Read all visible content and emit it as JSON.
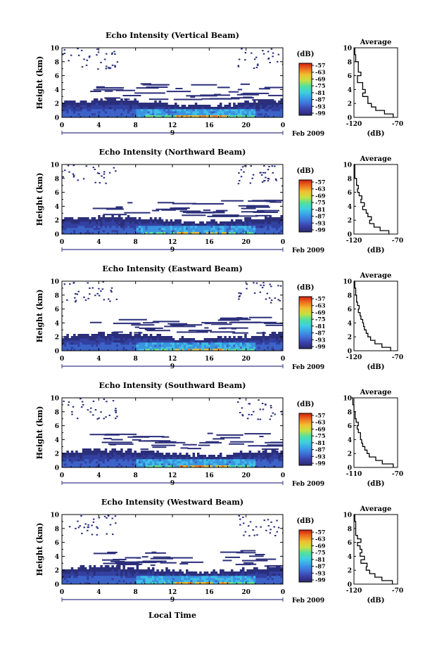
{
  "colors": {
    "scale": [
      "#2a2a6e",
      "#3b3fa8",
      "#3f6fd8",
      "#3aa0e8",
      "#3fd0e0",
      "#50e0a0",
      "#c8e040",
      "#f0c030",
      "#f07020",
      "#d02010"
    ],
    "beam_layer": [
      "#2b2f7a",
      "#3340a0",
      "#3c63c8",
      "#3a94e0",
      "#40c0e8"
    ],
    "core": [
      "#3fd0c0",
      "#6ee08a",
      "#e0c040",
      "#f08020"
    ]
  },
  "axis_labels": {
    "height": "Height (km)",
    "db": "(dB)",
    "average": "Average",
    "date": "Feb 2009",
    "day": "9",
    "local_time": "Local Time"
  },
  "panels": [
    {
      "title": "Echo Intensity (Vertical Beam)",
      "intensity": 1.0
    },
    {
      "title": "Echo Intensity (Northward Beam)",
      "intensity": 0.55
    },
    {
      "title": "Echo Intensity (Eastward Beam)",
      "intensity": 0.75
    },
    {
      "title": "Echo Intensity (Southward Beam)",
      "intensity": 0.9
    },
    {
      "title": "Echo Intensity (Westward Beam)",
      "intensity": 0.8
    }
  ],
  "chart_data": [
    {
      "type": "heatmap",
      "title": "Echo Intensity (Vertical Beam)",
      "ylabel": "Height (km)",
      "xticks": [
        "0",
        "4",
        "8",
        "12",
        "16",
        "20",
        "0"
      ],
      "yticks": [
        "0",
        "2",
        "4",
        "6",
        "8",
        "10"
      ],
      "colorbar_label": "(dB)",
      "colorbar_ticks": [
        "-57",
        "-63",
        "-69",
        "-75",
        "-81",
        "-87",
        "-93",
        "-99"
      ],
      "average_profile": {
        "title": "Average",
        "xlabel": "(dB)",
        "xticks": [
          "-120",
          "-70"
        ],
        "yticks": [
          "0",
          "2",
          "4",
          "6",
          "8",
          "10"
        ],
        "height_km": [
          0,
          0.5,
          1.0,
          1.5,
          2.0,
          2.5,
          3.0,
          3.5,
          4.0,
          4.5,
          5.0,
          5.5,
          6.0,
          6.5,
          7.0,
          8.0,
          9.0,
          10.0
        ],
        "db": [
          -75,
          -85,
          -95,
          -100,
          -104,
          -104,
          -110,
          -107,
          -110,
          -110,
          -116,
          -116,
          -112,
          -115,
          -115,
          -118,
          -119,
          -119
        ]
      }
    },
    {
      "type": "heatmap",
      "title": "Echo Intensity (Northward Beam)",
      "ylabel": "Height (km)",
      "xticks": [
        "0",
        "4",
        "8",
        "12",
        "16",
        "20",
        "0"
      ],
      "yticks": [
        "0",
        "2",
        "4",
        "6",
        "8",
        "10"
      ],
      "colorbar_label": "(dB)",
      "colorbar_ticks": [
        "-57",
        "-63",
        "-69",
        "-75",
        "-81",
        "-87",
        "-93",
        "-99"
      ],
      "average_profile": {
        "title": "Average",
        "xlabel": "(dB)",
        "xticks": [
          "-120",
          "-70"
        ],
        "yticks": [
          "0",
          "2",
          "4",
          "6",
          "8",
          "10"
        ],
        "height_km": [
          0,
          0.5,
          1.0,
          1.5,
          2.0,
          2.5,
          3.0,
          3.5,
          4.0,
          4.5,
          5.0,
          5.5,
          6.0,
          6.5,
          7.0,
          8.0,
          9.0,
          10.0
        ],
        "db": [
          -80,
          -90,
          -97,
          -102,
          -100,
          -104,
          -106,
          -110,
          -108,
          -112,
          -111,
          -114,
          -116,
          -115,
          -117,
          -119,
          -119,
          -120
        ]
      }
    },
    {
      "type": "heatmap",
      "title": "Echo Intensity (Eastward Beam)",
      "ylabel": "Height (km)",
      "xticks": [
        "0",
        "4",
        "8",
        "12",
        "16",
        "20",
        "0"
      ],
      "yticks": [
        "0",
        "2",
        "4",
        "6",
        "8",
        "10"
      ],
      "colorbar_label": "(dB)",
      "colorbar_ticks": [
        "-57",
        "-63",
        "-69",
        "-75",
        "-81",
        "-87",
        "-93",
        "-99"
      ],
      "average_profile": {
        "title": "Average",
        "xlabel": "(dB)",
        "xticks": [
          "-120",
          "-70"
        ],
        "yticks": [
          "0",
          "2",
          "4",
          "6",
          "8",
          "10"
        ],
        "height_km": [
          0,
          0.5,
          1.0,
          1.5,
          2.0,
          2.5,
          3.0,
          3.5,
          4.0,
          4.5,
          5.0,
          5.5,
          6.0,
          6.5,
          7.0,
          8.0,
          9.0,
          10.0
        ],
        "db": [
          -78,
          -88,
          -96,
          -101,
          -104,
          -106,
          -108,
          -109,
          -110,
          -112,
          -113,
          -115,
          -114,
          -116,
          -117,
          -118,
          -119,
          -120
        ]
      }
    },
    {
      "type": "heatmap",
      "title": "Echo Intensity (Southward Beam)",
      "ylabel": "Height (km)",
      "xticks": [
        "0",
        "4",
        "8",
        "12",
        "16",
        "20",
        "0"
      ],
      "yticks": [
        "0",
        "2",
        "4",
        "6",
        "8",
        "10"
      ],
      "colorbar_label": "(dB)",
      "colorbar_ticks": [
        "-57",
        "-63",
        "-69",
        "-75",
        "-81",
        "-87",
        "-93",
        "-99"
      ],
      "average_profile": {
        "title": "Average",
        "xlabel": "(dB)",
        "xticks": [
          "-110",
          "-70"
        ],
        "yticks": [
          "0",
          "2",
          "4",
          "6",
          "8",
          "10"
        ],
        "height_km": [
          0,
          0.5,
          1.0,
          1.5,
          2.0,
          2.5,
          3.0,
          3.5,
          4.0,
          4.5,
          5.0,
          5.5,
          6.0,
          6.5,
          7.0,
          8.0,
          9.0,
          10.0
        ],
        "db": [
          -74,
          -84,
          -90,
          -96,
          -98,
          -100,
          -102,
          -103,
          -104,
          -104,
          -106,
          -107,
          -106,
          -108,
          -109,
          -110,
          -111,
          -112
        ]
      }
    },
    {
      "type": "heatmap",
      "title": "Echo Intensity (Westward Beam)",
      "ylabel": "Height (km)",
      "xticks": [
        "0",
        "4",
        "8",
        "12",
        "16",
        "20",
        "0"
      ],
      "yticks": [
        "0",
        "2",
        "4",
        "6",
        "8",
        "10"
      ],
      "colorbar_label": "(dB)",
      "colorbar_ticks": [
        "-57",
        "-63",
        "-69",
        "-75",
        "-81",
        "-87",
        "-93",
        "-99"
      ],
      "average_profile": {
        "title": "Average",
        "xlabel": "(dB)",
        "xticks": [
          "-120",
          "-70"
        ],
        "yticks": [
          "0",
          "2",
          "4",
          "6",
          "8",
          "10"
        ],
        "height_km": [
          0,
          0.5,
          1.0,
          1.5,
          2.0,
          2.5,
          3.0,
          3.5,
          4.0,
          4.5,
          5.0,
          5.5,
          6.0,
          6.5,
          7.0,
          8.0,
          9.0,
          10.0
        ],
        "db": [
          -76,
          -88,
          -96,
          -102,
          -106,
          -105,
          -112,
          -108,
          -113,
          -111,
          -113,
          -116,
          -112,
          -116,
          -118,
          -118,
          -119,
          -120
        ]
      }
    }
  ]
}
